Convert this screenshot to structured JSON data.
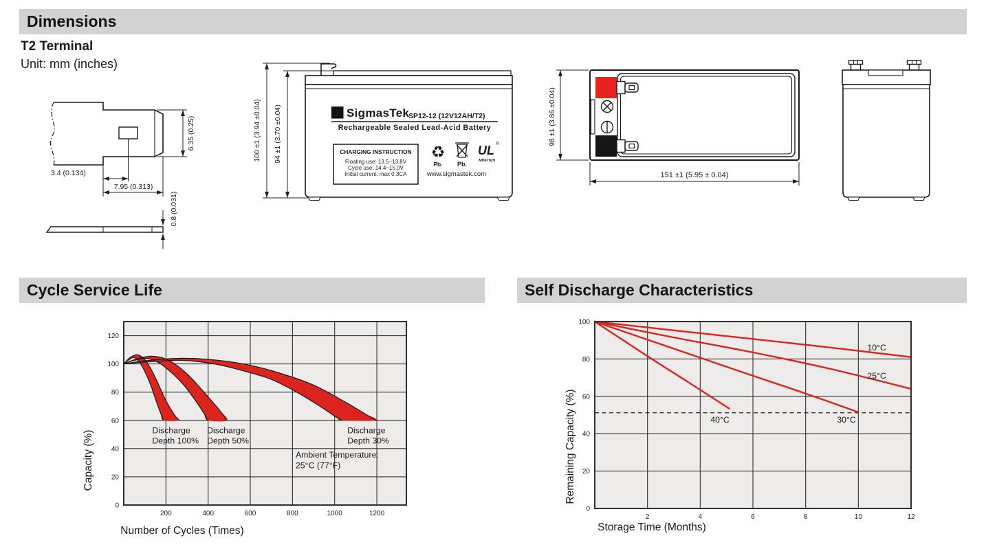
{
  "sections": {
    "dimensions": {
      "title": "Dimensions"
    },
    "cycle_life": {
      "title": "Cycle Service Life"
    },
    "self_discharge": {
      "title": "Self Discharge Characteristics"
    }
  },
  "dimensions_block": {
    "subtitle": "T2 Terminal",
    "unit_note": "Unit: mm (inches)",
    "terminal_dims": {
      "tab_height": "6.35 (0.25)",
      "hole_offset": "3.4 (0.134)",
      "tab_length": "7.95 (0.313)",
      "thickness": "0.8 (0.031)"
    },
    "front_view": {
      "dim_total_height": "100 ±1 (3.94 ±0.04)",
      "dim_case_height": "94 ±1 (3.70 ±0.04)",
      "logo_sigma": "Σ",
      "brand": "SigmasTek",
      "model": "SP12-12 (12V12AH/T2)",
      "type_line": "Rechargeable Sealed Lead-Acid Battery",
      "charging_box": {
        "title": "CHARGING INSTRUCTION",
        "line1": "Floating use: 13.5~13.8V",
        "line2": "Cycle use: 14.4~15.0V",
        "line3": "Initial current: max 0.3CA"
      },
      "recycle_icon_label": "Pb.",
      "bin_icon_label": "Pb.",
      "ul_mark": "UL",
      "ul_reg": "®",
      "ul_code": "MH47929",
      "website": "www.sigmastek.com"
    },
    "top_view": {
      "dim_width": "98 ±1 (3.86 ±0.04)",
      "dim_length": "151 ±1 (5.95 ± 0.04)"
    }
  },
  "chart_data": [
    {
      "type": "area",
      "title": "Cycle Service Life",
      "xlabel": "Number of Cycles (Times)",
      "ylabel": "Capacity (%)",
      "xlim": [
        0,
        1340
      ],
      "ylim": [
        0,
        130
      ],
      "xticks": [
        200,
        400,
        600,
        800,
        1000,
        1200
      ],
      "yticks": [
        0,
        20,
        40,
        60,
        80,
        100,
        120
      ],
      "grid": true,
      "plot_bg": "#edecea",
      "grid_color": "#2f2f2f",
      "band_color": "#dc241f",
      "bands": [
        {
          "name": "Discharge Depth 30%",
          "upper": [
            [
              0,
              100
            ],
            [
              120,
              102.5
            ],
            [
              280,
              104
            ],
            [
              450,
              102.5
            ],
            [
              600,
              99
            ],
            [
              750,
              93
            ],
            [
              900,
              85
            ],
            [
              1050,
              73
            ],
            [
              1140,
              65
            ],
            [
              1197,
              60
            ]
          ],
          "lower": [
            [
              0,
              100
            ],
            [
              120,
              101.5
            ],
            [
              280,
              102.5
            ],
            [
              430,
              100
            ],
            [
              570,
              95
            ],
            [
              700,
              89
            ],
            [
              820,
              80
            ],
            [
              930,
              70
            ],
            [
              1010,
              62
            ],
            [
              1035,
              60
            ]
          ]
        },
        {
          "name": "Discharge Depth 50%",
          "upper": [
            [
              0,
              100
            ],
            [
              60,
              103.5
            ],
            [
              130,
              105.5
            ],
            [
              200,
              103.5
            ],
            [
              260,
              98
            ],
            [
              320,
              90
            ],
            [
              380,
              80
            ],
            [
              450,
              68
            ],
            [
              490,
              60
            ]
          ],
          "lower": [
            [
              0,
              100
            ],
            [
              50,
              102.5
            ],
            [
              105,
              104
            ],
            [
              165,
              101
            ],
            [
              225,
              94
            ],
            [
              285,
              85
            ],
            [
              340,
              74
            ],
            [
              380,
              65
            ],
            [
              398,
              60
            ]
          ]
        },
        {
          "name": "Discharge Depth 100%",
          "upper": [
            [
              0,
              100
            ],
            [
              30,
              104.5
            ],
            [
              65,
              106.5
            ],
            [
              100,
              103
            ],
            [
              130,
              96
            ],
            [
              160,
              87
            ],
            [
              200,
              74
            ],
            [
              240,
              64
            ],
            [
              262,
              60
            ]
          ],
          "lower": [
            [
              0,
              100
            ],
            [
              25,
              103
            ],
            [
              50,
              104.5
            ],
            [
              80,
              100
            ],
            [
              105,
              93
            ],
            [
              130,
              84
            ],
            [
              155,
              73
            ],
            [
              175,
              65
            ],
            [
              188,
              60
            ]
          ]
        }
      ],
      "annotations": [
        {
          "lines": [
            "Discharge",
            "Depth 100%"
          ],
          "x": 135,
          "y": 51
        },
        {
          "lines": [
            "Discharge",
            "Depth 50%"
          ],
          "x": 395,
          "y": 51
        },
        {
          "lines": [
            "Discharge",
            "Depth 30%"
          ],
          "x": 1060,
          "y": 51
        },
        {
          "lines": [
            "Ambient Temperature:",
            "25°C (77°F)"
          ],
          "x": 815,
          "y": 33.5
        }
      ]
    },
    {
      "type": "line",
      "title": "Self Discharge Characteristics",
      "xlabel": "Storage Time (Months)",
      "ylabel": "Remaining Capacity (%)",
      "xlim": [
        0,
        12
      ],
      "ylim": [
        0,
        100
      ],
      "xticks": [
        2,
        4,
        6,
        8,
        10,
        12
      ],
      "yticks": [
        0,
        20,
        40,
        60,
        80,
        100
      ],
      "grid": true,
      "plot_bg": "#edecea",
      "grid_color": "#2f2f2f",
      "line_color": "#dc241f",
      "dashed_y": 51.2,
      "series": [
        {
          "name": "10°C",
          "points": [
            [
              0,
              100
            ],
            [
              3,
              95.3
            ],
            [
              6,
              90.7
            ],
            [
              9,
              86
            ],
            [
              12,
              81
            ]
          ],
          "label_x": 10.7,
          "label_y": 84.5
        },
        {
          "name": "25°C",
          "points": [
            [
              0,
              100
            ],
            [
              3,
              91.5
            ],
            [
              6,
              83.5
            ],
            [
              9,
              74.5
            ],
            [
              12,
              64
            ]
          ],
          "label_x": 10.7,
          "label_y": 69.5
        },
        {
          "name": "30°C",
          "points": [
            [
              0,
              100
            ],
            [
              3,
              85.5
            ],
            [
              6,
              71
            ],
            [
              8,
              61.5
            ],
            [
              10,
              51.5
            ]
          ],
          "label_x": 9.55,
          "label_y": 46
        },
        {
          "name": "40°C",
          "points": [
            [
              0,
              100
            ],
            [
              2,
              81.5
            ],
            [
              3.5,
              68
            ],
            [
              5.1,
              53.5
            ]
          ],
          "label_x": 4.75,
          "label_y": 46
        }
      ]
    }
  ]
}
